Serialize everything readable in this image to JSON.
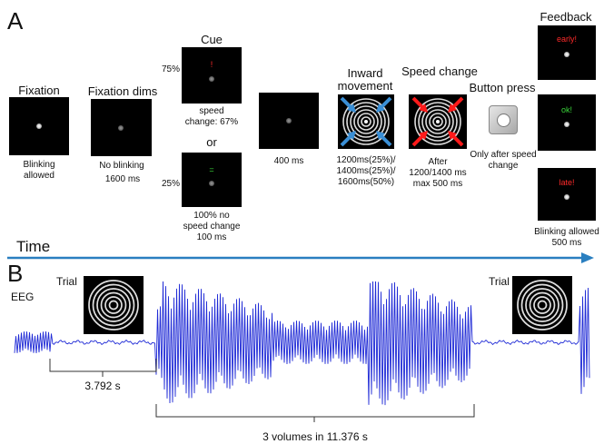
{
  "panel_a": {
    "label": "A",
    "fixation": {
      "title": "Fixation",
      "caption": "Blinking\nallowed"
    },
    "fixation_dims": {
      "title": "Fixation dims",
      "caption": "No blinking",
      "duration": "1600 ms"
    },
    "cue": {
      "title": "Cue",
      "top_percent": "75%",
      "top_symbol": "!",
      "top_caption": "speed\nchange: 67%",
      "or_label": "or",
      "bottom_percent": "25%",
      "bottom_symbol": "=",
      "bottom_caption": "100% no\nspeed change\n100 ms"
    },
    "delay": {
      "caption": "400 ms"
    },
    "inward": {
      "title": "Inward\nmovement",
      "caption": "1200ms(25%)/\n1400ms(25%)/\n1600ms(50%)"
    },
    "speed_change": {
      "title": "Speed change",
      "caption": "After\n1200/1400 ms\nmax 500 ms"
    },
    "button_press": {
      "title": "Button press",
      "caption": "Only after speed\nchange"
    },
    "feedback": {
      "title": "Feedback",
      "early": "early!",
      "ok": "ok!",
      "late": "late!",
      "caption": "Blinking allowed\n500 ms"
    },
    "time_label": "Time",
    "colors": {
      "arrow_blue": "#3a8fd6",
      "arrow_red": "#ff1a1a",
      "timeline": "#2a7fc0",
      "text_red": "#ff2a2a",
      "text_green": "#3ad63a"
    }
  },
  "panel_b": {
    "label": "B",
    "eeg_label": "EEG",
    "trial_left": "Trial",
    "trial_right": "Trial",
    "interval_1": "3.792 s",
    "interval_2": "3 volumes in 11.376 s",
    "trace_color": "#1f2ad6"
  }
}
